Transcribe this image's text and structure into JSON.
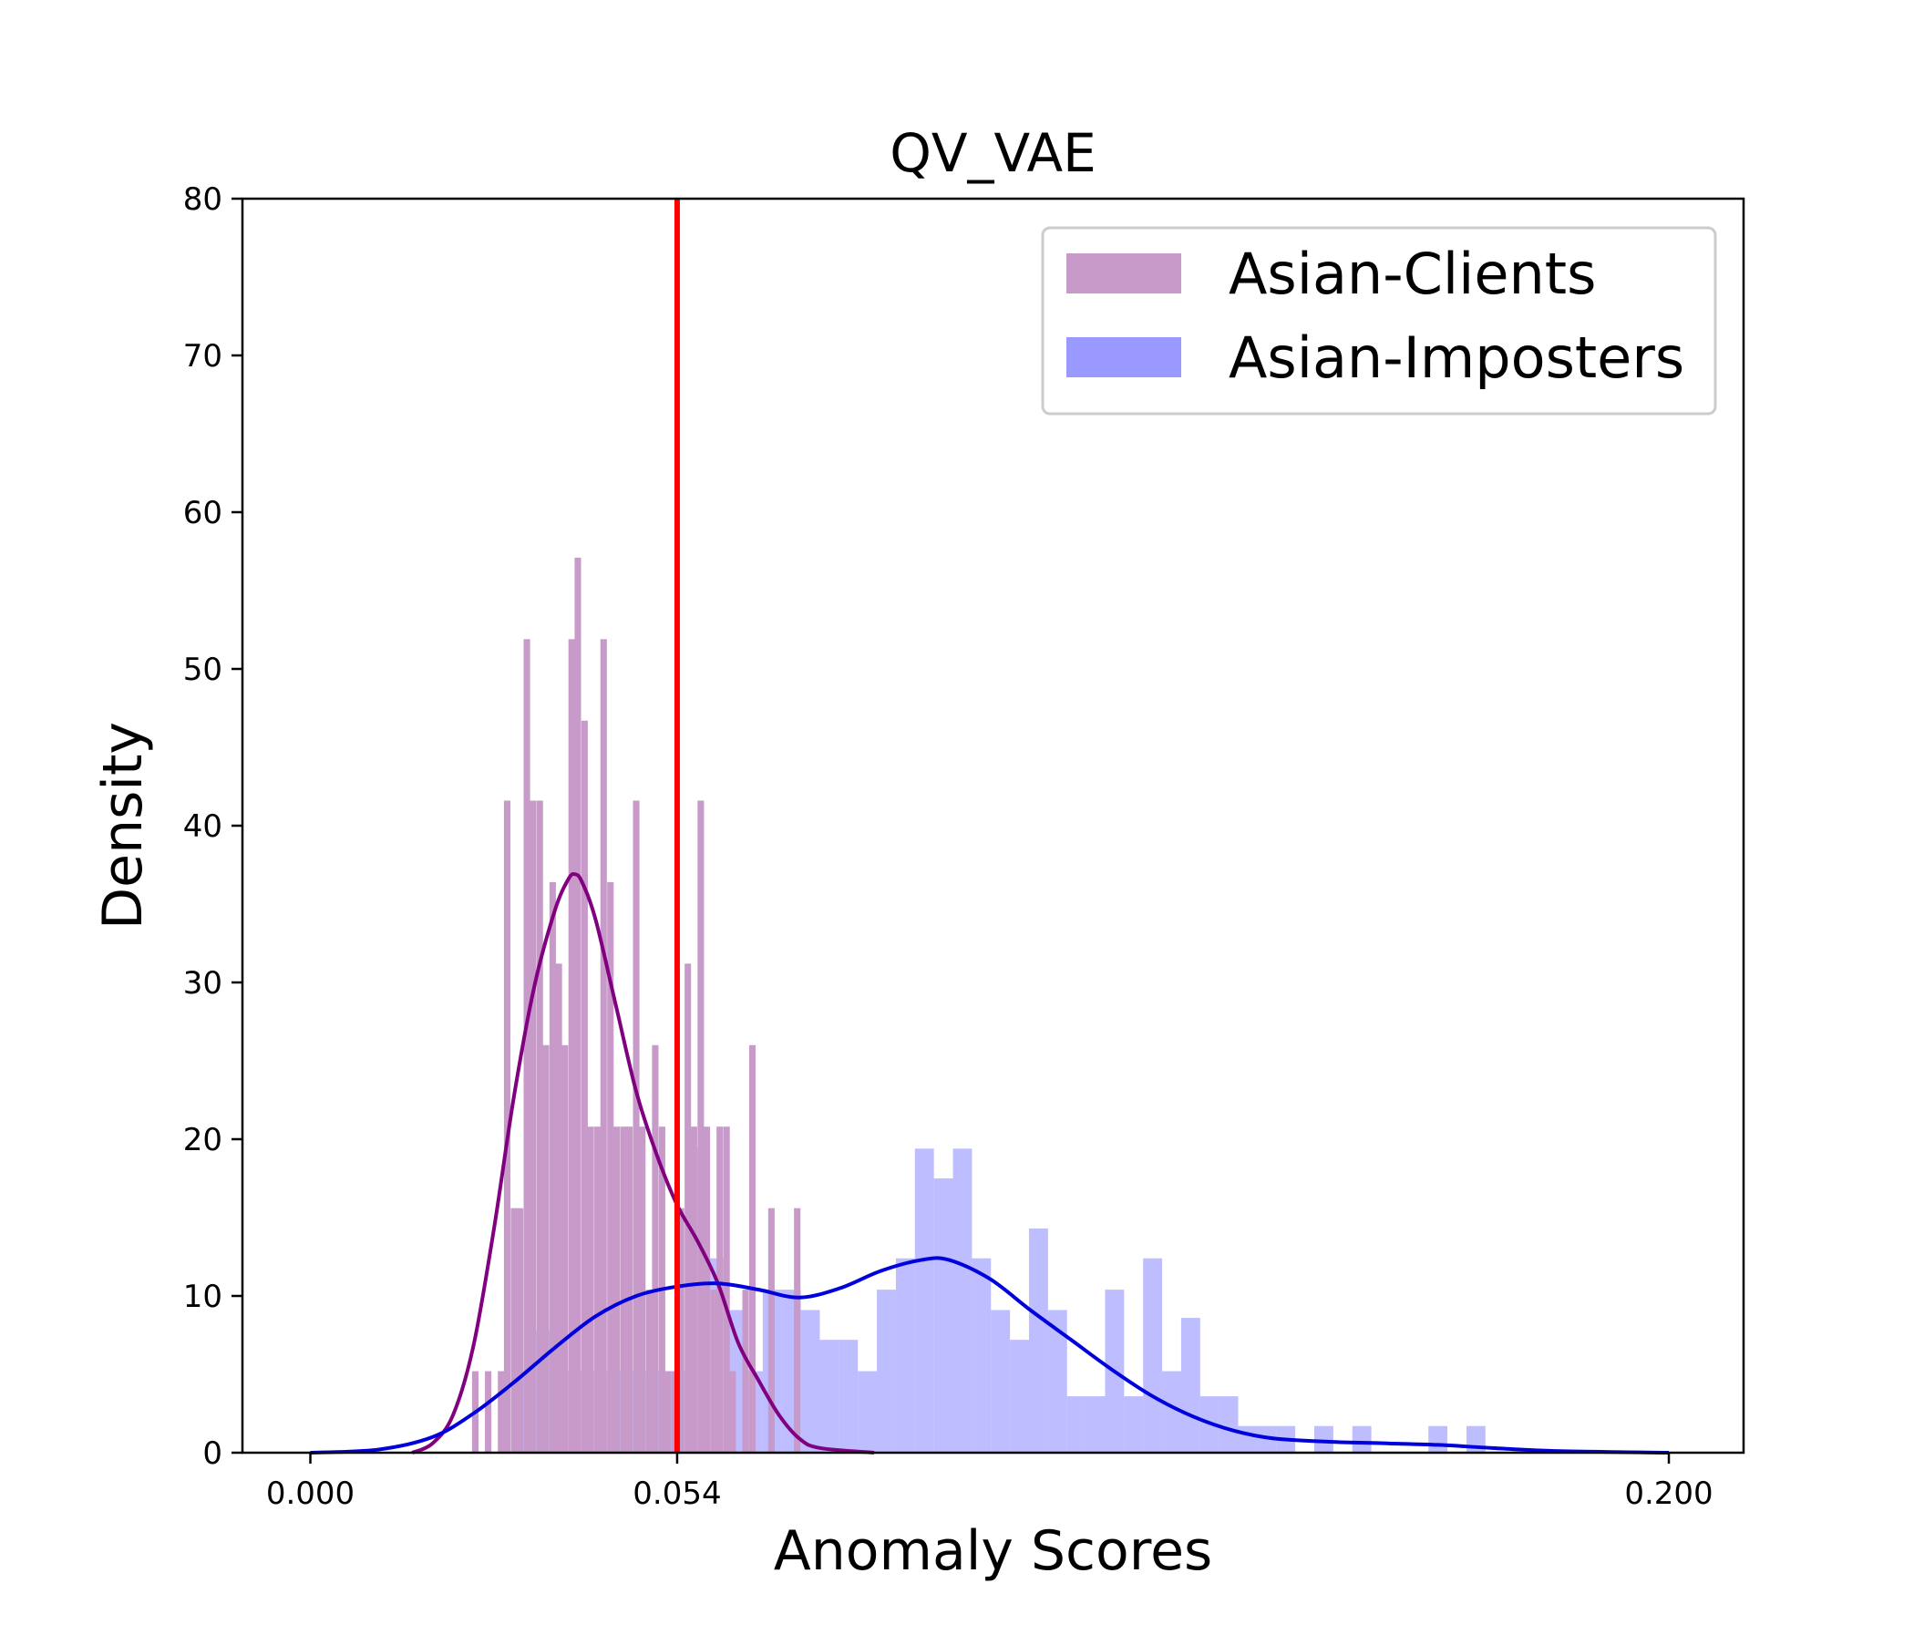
{
  "chart_data": {
    "type": "histogram",
    "title": "QV_VAE",
    "xlabel": "Anomaly Scores",
    "ylabel": "Density",
    "xlim": [
      -0.01,
      0.211
    ],
    "ylim": [
      0,
      80
    ],
    "x_ticks": [
      0.0,
      0.054,
      0.2
    ],
    "x_tick_labels": [
      "0.000",
      "0.054",
      "0.200"
    ],
    "y_ticks": [
      0,
      10,
      20,
      30,
      40,
      50,
      60,
      70,
      80
    ],
    "y_tick_labels": [
      "0",
      "10",
      "20",
      "30",
      "40",
      "50",
      "60",
      "70",
      "80"
    ],
    "grid": false,
    "legend_position": "upper right",
    "threshold": {
      "x": 0.054,
      "color": "#ff0000"
    },
    "series": [
      {
        "name": "Asian-Clients",
        "bar_color": "#c79ac9",
        "kde_color": "#800080",
        "bin_width": 0.00095,
        "bins": [
          [
            0.0238,
            5.2
          ],
          [
            0.0257,
            5.2
          ],
          [
            0.0276,
            5.2
          ],
          [
            0.0285,
            41.6
          ],
          [
            0.0295,
            15.6
          ],
          [
            0.0304,
            15.6
          ],
          [
            0.0314,
            51.9
          ],
          [
            0.0323,
            41.6
          ],
          [
            0.0333,
            41.6
          ],
          [
            0.0342,
            26.0
          ],
          [
            0.0352,
            36.4
          ],
          [
            0.0361,
            31.2
          ],
          [
            0.037,
            26.0
          ],
          [
            0.038,
            51.9
          ],
          [
            0.0389,
            57.1
          ],
          [
            0.0399,
            46.7
          ],
          [
            0.0408,
            20.8
          ],
          [
            0.0418,
            20.8
          ],
          [
            0.0427,
            51.9
          ],
          [
            0.0437,
            36.4
          ],
          [
            0.0446,
            20.8
          ],
          [
            0.0456,
            20.8
          ],
          [
            0.0465,
            20.8
          ],
          [
            0.0475,
            41.6
          ],
          [
            0.0484,
            20.8
          ],
          [
            0.0494,
            10.4
          ],
          [
            0.0503,
            26.0
          ],
          [
            0.0513,
            20.8
          ],
          [
            0.0522,
            5.2
          ],
          [
            0.0532,
            5.2
          ],
          [
            0.0541,
            15.6
          ],
          [
            0.0551,
            31.2
          ],
          [
            0.056,
            20.8
          ],
          [
            0.057,
            41.6
          ],
          [
            0.0579,
            20.8
          ],
          [
            0.0589,
            10.4
          ],
          [
            0.0598,
            20.8
          ],
          [
            0.0608,
            20.8
          ],
          [
            0.0617,
            5.2
          ],
          [
            0.0636,
            10.4
          ],
          [
            0.0646,
            26.0
          ],
          [
            0.0674,
            15.6
          ],
          [
            0.0712,
            15.6
          ]
        ],
        "kde": [
          [
            0.015,
            0.0
          ],
          [
            0.018,
            0.6
          ],
          [
            0.021,
            2.4
          ],
          [
            0.024,
            6.8
          ],
          [
            0.027,
            14.2
          ],
          [
            0.03,
            22.8
          ],
          [
            0.033,
            29.8
          ],
          [
            0.036,
            34.6
          ],
          [
            0.038,
            36.6
          ],
          [
            0.039,
            36.9
          ],
          [
            0.04,
            36.4
          ],
          [
            0.042,
            34.0
          ],
          [
            0.045,
            28.5
          ],
          [
            0.048,
            23.0
          ],
          [
            0.051,
            19.0
          ],
          [
            0.054,
            15.8
          ],
          [
            0.057,
            13.5
          ],
          [
            0.06,
            10.8
          ],
          [
            0.063,
            7.0
          ],
          [
            0.066,
            4.6
          ],
          [
            0.069,
            2.4
          ],
          [
            0.072,
            0.9
          ],
          [
            0.075,
            0.3
          ],
          [
            0.083,
            0.0
          ]
        ]
      },
      {
        "name": "Asian-Imposters",
        "bar_color": "#9999ff",
        "kde_color": "#0000dd",
        "bin_width": 0.0028,
        "bins": [
          [
            0.0302,
            5.2
          ],
          [
            0.033,
            7.8
          ],
          [
            0.0358,
            5.2
          ],
          [
            0.0386,
            5.2
          ],
          [
            0.0414,
            5.2
          ],
          [
            0.0442,
            5.2
          ],
          [
            0.047,
            5.2
          ],
          [
            0.0498,
            5.2
          ],
          [
            0.0526,
            5.2
          ],
          [
            0.0554,
            19.5
          ],
          [
            0.0582,
            12.4
          ],
          [
            0.061,
            9.1
          ],
          [
            0.0638,
            5.2
          ],
          [
            0.0666,
            10.4
          ],
          [
            0.0694,
            10.4
          ],
          [
            0.0722,
            9.1
          ],
          [
            0.075,
            7.2
          ],
          [
            0.0778,
            7.2
          ],
          [
            0.0806,
            5.2
          ],
          [
            0.0834,
            10.4
          ],
          [
            0.0862,
            12.4
          ],
          [
            0.089,
            19.4
          ],
          [
            0.0918,
            17.5
          ],
          [
            0.0946,
            19.4
          ],
          [
            0.0974,
            12.4
          ],
          [
            0.1002,
            9.1
          ],
          [
            0.103,
            7.2
          ],
          [
            0.1058,
            14.3
          ],
          [
            0.1086,
            9.1
          ],
          [
            0.1114,
            3.6
          ],
          [
            0.1142,
            3.6
          ],
          [
            0.117,
            10.4
          ],
          [
            0.1198,
            3.6
          ],
          [
            0.1226,
            12.4
          ],
          [
            0.1254,
            5.2
          ],
          [
            0.1282,
            8.6
          ],
          [
            0.131,
            3.6
          ],
          [
            0.1338,
            3.6
          ],
          [
            0.1366,
            1.7
          ],
          [
            0.1394,
            1.7
          ],
          [
            0.1422,
            1.7
          ],
          [
            0.1478,
            1.7
          ],
          [
            0.1534,
            1.7
          ],
          [
            0.1646,
            1.7
          ],
          [
            0.1702,
            1.7
          ]
        ],
        "kde": [
          [
            0.0,
            0.0
          ],
          [
            0.01,
            0.2
          ],
          [
            0.018,
            1.0
          ],
          [
            0.024,
            2.5
          ],
          [
            0.03,
            4.5
          ],
          [
            0.036,
            6.7
          ],
          [
            0.042,
            8.7
          ],
          [
            0.048,
            10.0
          ],
          [
            0.054,
            10.6
          ],
          [
            0.06,
            10.8
          ],
          [
            0.066,
            10.4
          ],
          [
            0.072,
            9.9
          ],
          [
            0.078,
            10.5
          ],
          [
            0.084,
            11.6
          ],
          [
            0.09,
            12.3
          ],
          [
            0.094,
            12.3
          ],
          [
            0.1,
            11.1
          ],
          [
            0.106,
            9.1
          ],
          [
            0.112,
            7.2
          ],
          [
            0.118,
            5.3
          ],
          [
            0.124,
            3.6
          ],
          [
            0.13,
            2.3
          ],
          [
            0.136,
            1.4
          ],
          [
            0.142,
            0.9
          ],
          [
            0.15,
            0.7
          ],
          [
            0.158,
            0.6
          ],
          [
            0.166,
            0.5
          ],
          [
            0.174,
            0.3
          ],
          [
            0.184,
            0.1
          ],
          [
            0.2,
            0.0
          ]
        ]
      }
    ]
  }
}
